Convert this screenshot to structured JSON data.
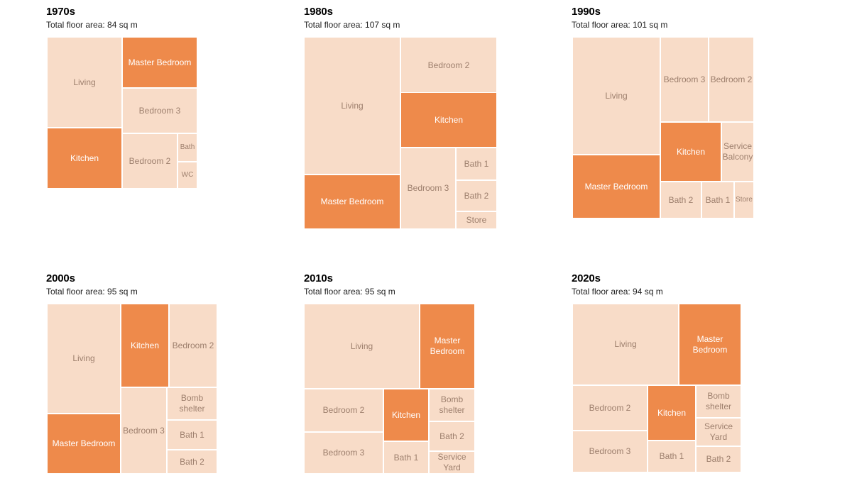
{
  "chart_data": {
    "type": "treemap",
    "colors": {
      "highlight": "#ee8a4b",
      "room": "#f8dcc8",
      "label": "#9d7f6d",
      "highlight_label": "#ffffff"
    },
    "panels": [
      {
        "decade": "1970s",
        "area_text": "Total floor area: 84 sq m",
        "rooms": [
          {
            "label": "Living"
          },
          {
            "label": "Master Bedroom",
            "highlight": true
          },
          {
            "label": "Bedroom 3"
          },
          {
            "label": "Kitchen",
            "highlight": true
          },
          {
            "label": "Bedroom 2"
          },
          {
            "label": "Bath"
          },
          {
            "label": "WC"
          }
        ]
      },
      {
        "decade": "1980s",
        "area_text": "Total floor area: 107 sq m",
        "rooms": [
          {
            "label": "Living"
          },
          {
            "label": "Bedroom 2"
          },
          {
            "label": "Kitchen",
            "highlight": true
          },
          {
            "label": "Master Bedroom",
            "highlight": true
          },
          {
            "label": "Bedroom 3"
          },
          {
            "label": "Bath 1"
          },
          {
            "label": "Bath 2"
          },
          {
            "label": "Store"
          }
        ]
      },
      {
        "decade": "1990s",
        "area_text": "Total floor area: 101 sq m",
        "rooms": [
          {
            "label": "Living"
          },
          {
            "label": "Bedroom 3"
          },
          {
            "label": "Bedroom 2"
          },
          {
            "label": "Kitchen",
            "highlight": true
          },
          {
            "label": "Service\nBalcony"
          },
          {
            "label": "Master Bedroom",
            "highlight": true
          },
          {
            "label": "Bath 2"
          },
          {
            "label": "Bath 1"
          },
          {
            "label": "Store"
          }
        ]
      },
      {
        "decade": "2000s",
        "area_text": "Total floor area: 95 sq m",
        "rooms": [
          {
            "label": "Living"
          },
          {
            "label": "Kitchen",
            "highlight": true
          },
          {
            "label": "Bedroom 2"
          },
          {
            "label": "Master Bedroom",
            "highlight": true
          },
          {
            "label": "Bedroom 3"
          },
          {
            "label": "Bomb\nshelter"
          },
          {
            "label": "Bath 1"
          },
          {
            "label": "Bath 2"
          }
        ]
      },
      {
        "decade": "2010s",
        "area_text": "Total floor area: 95 sq m",
        "rooms": [
          {
            "label": "Living"
          },
          {
            "label": "Master\nBedroom",
            "highlight": true
          },
          {
            "label": "Bedroom 2"
          },
          {
            "label": "Kitchen",
            "highlight": true
          },
          {
            "label": "Bomb\nshelter"
          },
          {
            "label": "Bedroom 3"
          },
          {
            "label": "Bath 2"
          },
          {
            "label": "Bath 1"
          },
          {
            "label": "Service\nYard"
          }
        ]
      },
      {
        "decade": "2020s",
        "area_text": "Total floor area: 94 sq m",
        "rooms": [
          {
            "label": "Living"
          },
          {
            "label": "Master\nBedroom",
            "highlight": true
          },
          {
            "label": "Bedroom 2"
          },
          {
            "label": "Kitchen",
            "highlight": true
          },
          {
            "label": "Bomb\nshelter"
          },
          {
            "label": "Service\nYard"
          },
          {
            "label": "Bedroom 3"
          },
          {
            "label": "Bath 1"
          },
          {
            "label": "Bath 2"
          }
        ]
      }
    ]
  }
}
